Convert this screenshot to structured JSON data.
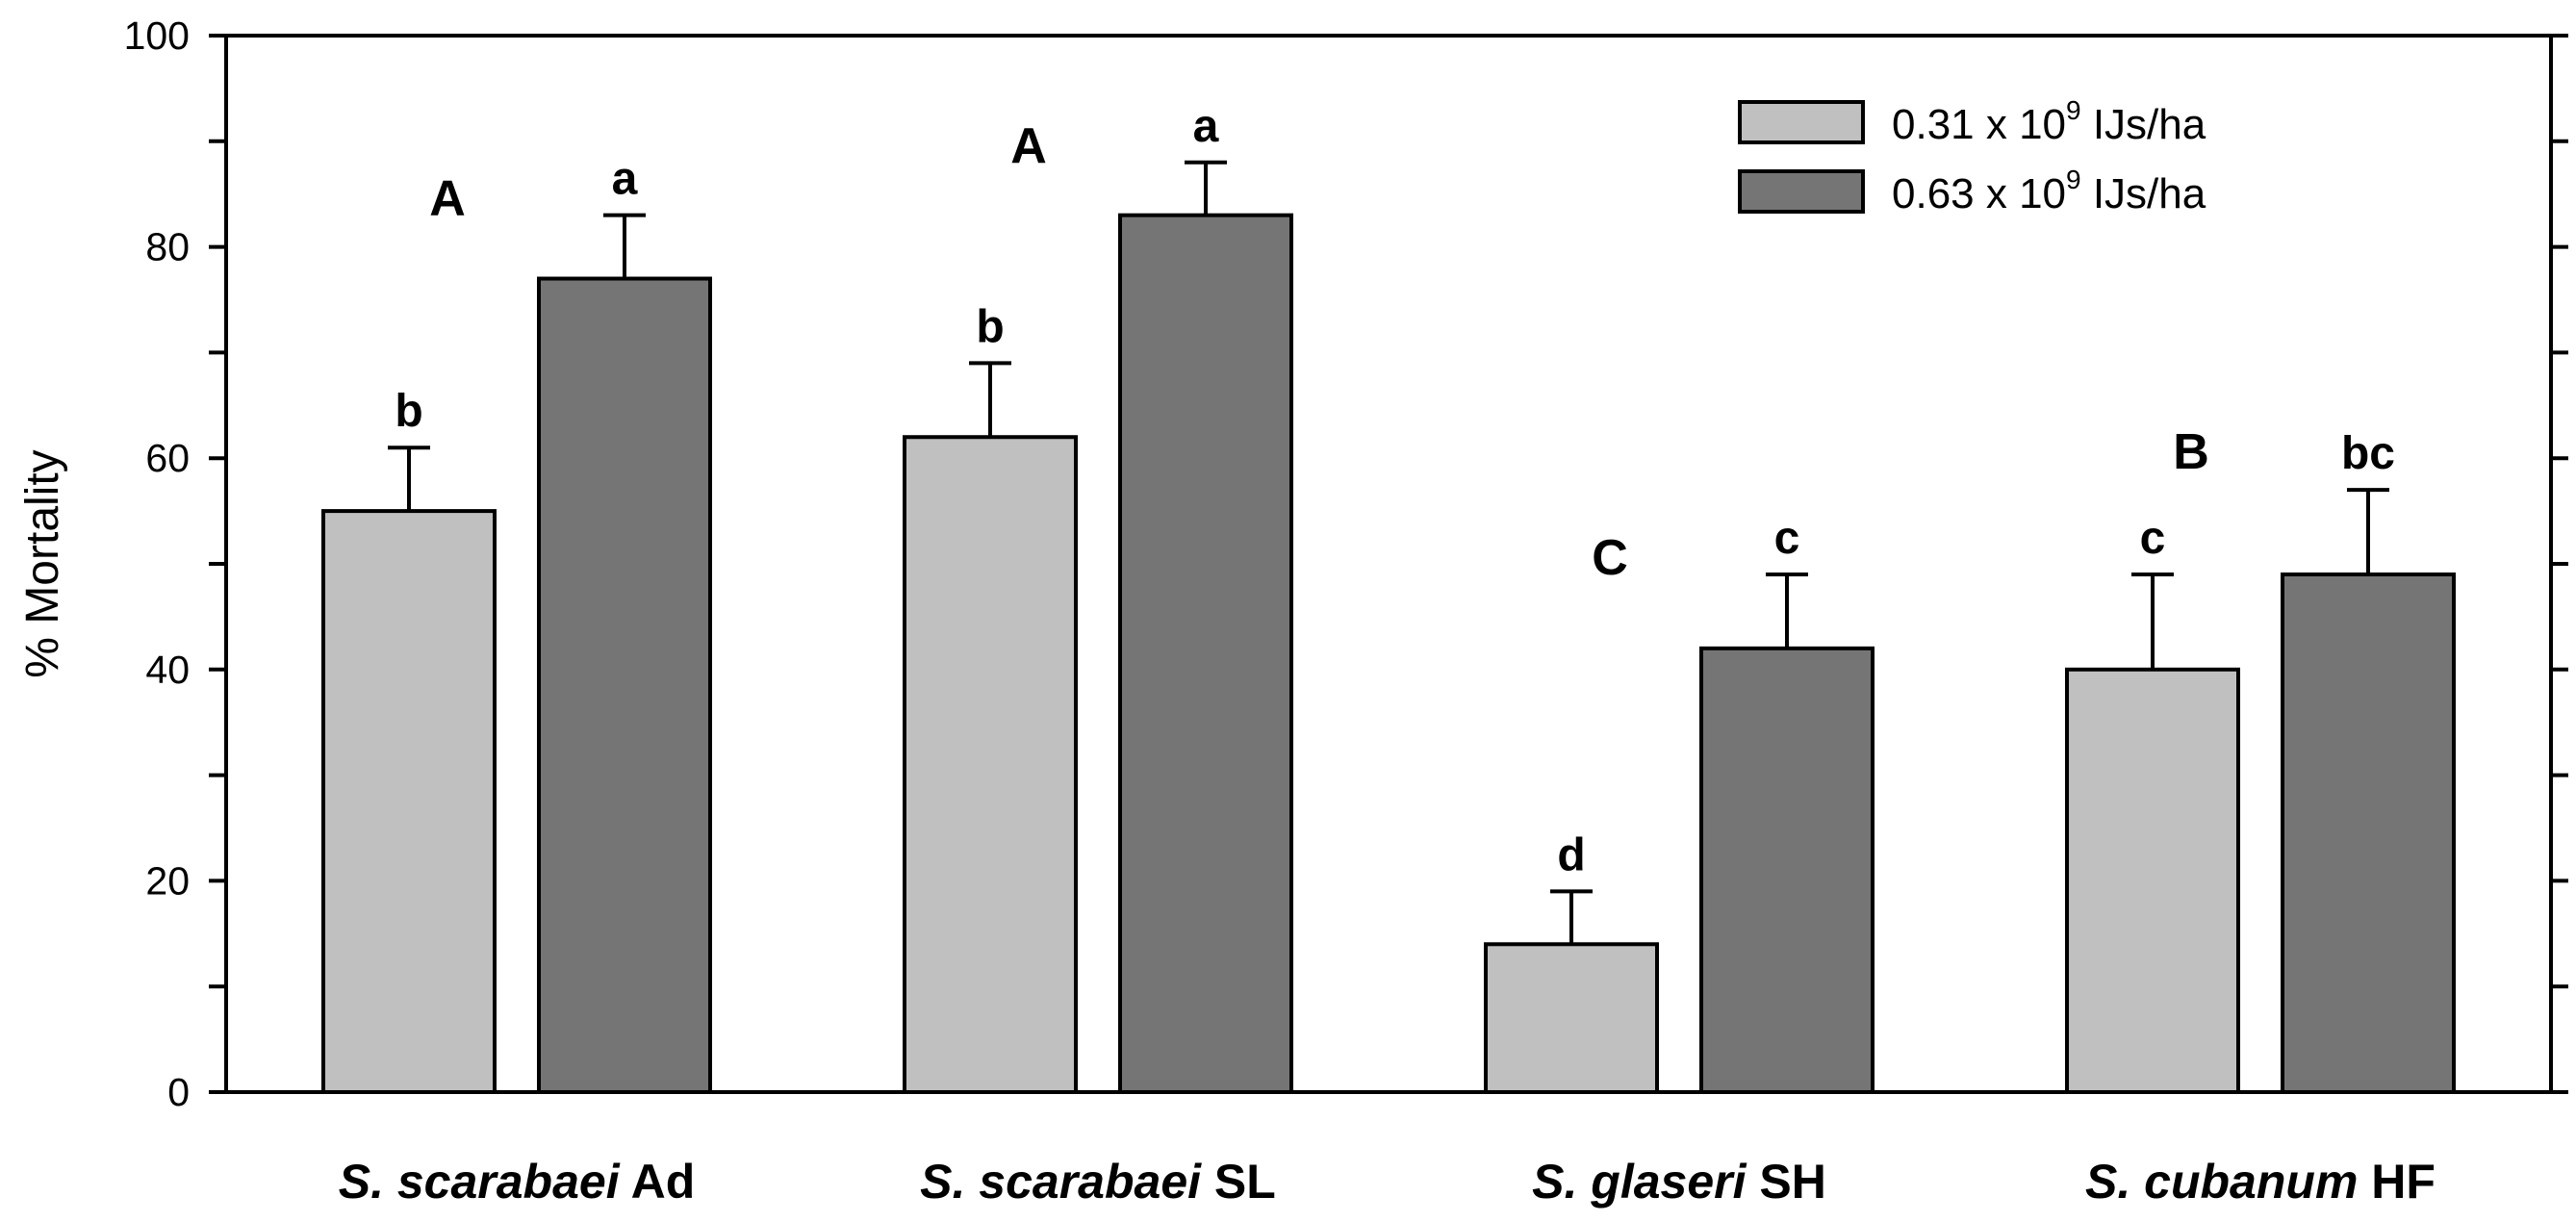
{
  "chart_data": {
    "type": "bar",
    "title": "",
    "xlabel": "",
    "ylabel": "% Mortality",
    "ylim": [
      0,
      100
    ],
    "yticks": [
      0,
      20,
      40,
      60,
      80,
      100
    ],
    "grid": false,
    "legend_position": "top-right",
    "categories": [
      {
        "species": "S. scarabaei",
        "strain": "Ad"
      },
      {
        "species": "S. scarabaei",
        "strain": "SL"
      },
      {
        "species": "S. glaseri",
        "strain": "SH"
      },
      {
        "species": "S. cubanum",
        "strain": "HF"
      }
    ],
    "series": [
      {
        "name": "0.31 x 10^9 IJs/ha",
        "legend_prefix": "0.31 x 10",
        "legend_exp": "9",
        "legend_suffix": " IJs/ha",
        "color": "#c0c0c0",
        "values": [
          55,
          62,
          14,
          40
        ],
        "errors": [
          6,
          7,
          5,
          9
        ],
        "letters": [
          "b",
          "b",
          "d",
          "c"
        ]
      },
      {
        "name": "0.63 x 10^9 IJs/ha",
        "legend_prefix": "0.63 x 10",
        "legend_exp": "9",
        "legend_suffix": " IJs/ha",
        "color": "#757575",
        "values": [
          77,
          83,
          42,
          49
        ],
        "errors": [
          6,
          5,
          7,
          8
        ],
        "letters": [
          "a",
          "a",
          "c",
          "bc"
        ]
      }
    ],
    "group_letters": [
      "A",
      "A",
      "C",
      "B"
    ]
  }
}
